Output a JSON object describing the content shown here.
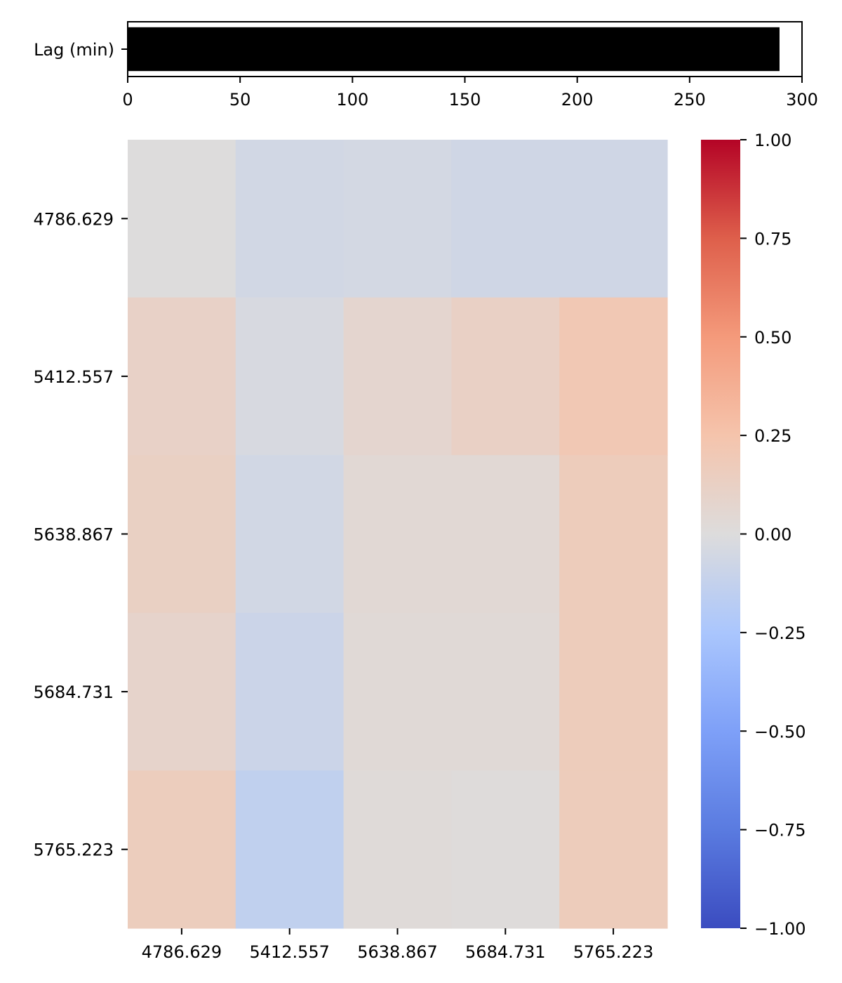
{
  "chart_data": [
    {
      "type": "bar",
      "orientation": "horizontal",
      "categories": [
        "Lag (min)"
      ],
      "values": [
        290
      ],
      "xlim": [
        0,
        300
      ],
      "xticks": [
        0,
        50,
        100,
        150,
        200,
        250,
        300
      ],
      "bar_color": "#000000",
      "grid": false
    },
    {
      "type": "heatmap",
      "x_labels": [
        "4786.629",
        "5412.557",
        "5638.867",
        "5684.731",
        "5765.223"
      ],
      "y_labels": [
        "4786.629",
        "5412.557",
        "5638.867",
        "5684.731",
        "5765.223"
      ],
      "values": [
        [
          0.0,
          -0.06,
          -0.05,
          -0.07,
          -0.07
        ],
        [
          0.11,
          -0.03,
          0.07,
          0.12,
          0.21
        ],
        [
          0.13,
          -0.06,
          0.04,
          0.04,
          0.17
        ],
        [
          0.09,
          -0.09,
          0.03,
          0.03,
          0.17
        ],
        [
          0.16,
          -0.14,
          0.02,
          0.01,
          0.17
        ]
      ],
      "colormap": "coolwarm",
      "vmin": -1.0,
      "vmax": 1.0,
      "colorbar_ticks": [
        "1.00",
        "0.75",
        "0.50",
        "0.25",
        "0.00",
        "−0.25",
        "−0.50",
        "−0.75",
        "−1.00"
      ],
      "colorbar_tick_values": [
        1.0,
        0.75,
        0.5,
        0.25,
        0.0,
        -0.25,
        -0.5,
        -0.75,
        -1.0
      ],
      "legend": "colorbar-right"
    }
  ]
}
